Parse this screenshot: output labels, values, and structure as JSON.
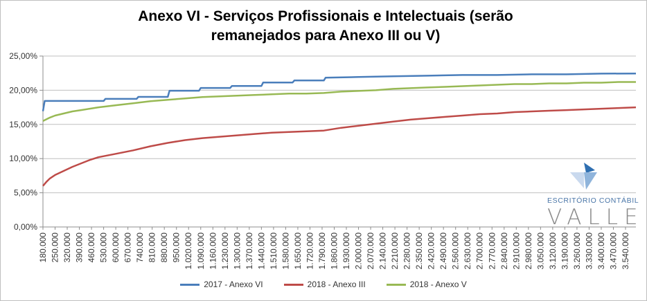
{
  "chart_data": {
    "type": "line",
    "title_lines": [
      "Anexo VI - Serviços Profissionais e Intelectuais (serão",
      "remanejados para Anexo III ou V)"
    ],
    "xlabel": "",
    "ylabel": "",
    "ylim": [
      0,
      25
    ],
    "y_ticks": [
      "0,00%",
      "5,00%",
      "10,00%",
      "15,00%",
      "20,00%",
      "25,00%"
    ],
    "x_ticks": [
      "180.000",
      "250.000",
      "320.000",
      "390.000",
      "460.000",
      "530.000",
      "600.000",
      "670.000",
      "740.000",
      "810.000",
      "880.000",
      "950.000",
      "1.020.000",
      "1.090.000",
      "1.160.000",
      "1.230.000",
      "1.300.000",
      "1.370.000",
      "1.440.000",
      "1.510.000",
      "1.580.000",
      "1.650.000",
      "1.720.000",
      "1.790.000",
      "1.860.000",
      "1.930.000",
      "2.000.000",
      "2.070.000",
      "2.140.000",
      "2.210.000",
      "2.280.000",
      "2.350.000",
      "2.420.000",
      "2.490.000",
      "2.560.000",
      "2.630.000",
      "2.700.000",
      "2.770.000",
      "2.840.000",
      "2.910.000",
      "2.980.000",
      "3.050.000",
      "3.120.000",
      "3.190.000",
      "3.260.000",
      "3.330.000",
      "3.400.000",
      "3.470.000",
      "3.540.000"
    ],
    "x_range": [
      180000,
      3600000
    ],
    "grid": true,
    "legend_position": "bottom",
    "series": [
      {
        "name": "2017 - Anexo VI",
        "color": "#4a7ebb",
        "points": [
          [
            180000,
            16.93
          ],
          [
            190000,
            18.43
          ],
          [
            530000,
            18.43
          ],
          [
            540000,
            18.73
          ],
          [
            720000,
            18.73
          ],
          [
            730000,
            19.03
          ],
          [
            900000,
            19.03
          ],
          [
            910000,
            19.93
          ],
          [
            1080000,
            19.93
          ],
          [
            1090000,
            20.33
          ],
          [
            1260000,
            20.33
          ],
          [
            1270000,
            20.63
          ],
          [
            1440000,
            20.63
          ],
          [
            1450000,
            21.13
          ],
          [
            1620000,
            21.13
          ],
          [
            1630000,
            21.43
          ],
          [
            1800000,
            21.43
          ],
          [
            1810000,
            21.83
          ],
          [
            2000000,
            21.93
          ],
          [
            2200000,
            22.03
          ],
          [
            2400000,
            22.13
          ],
          [
            2600000,
            22.23
          ],
          [
            2800000,
            22.23
          ],
          [
            3000000,
            22.33
          ],
          [
            3200000,
            22.33
          ],
          [
            3400000,
            22.43
          ],
          [
            3600000,
            22.45
          ]
        ]
      },
      {
        "name": "2018 - Anexo III",
        "color": "#be4b48",
        "points": [
          [
            180000,
            6.0
          ],
          [
            200000,
            6.6
          ],
          [
            220000,
            7.1
          ],
          [
            250000,
            7.6
          ],
          [
            300000,
            8.2
          ],
          [
            350000,
            8.8
          ],
          [
            400000,
            9.3
          ],
          [
            450000,
            9.8
          ],
          [
            500000,
            10.2
          ],
          [
            600000,
            10.7
          ],
          [
            700000,
            11.2
          ],
          [
            800000,
            11.8
          ],
          [
            900000,
            12.3
          ],
          [
            1000000,
            12.7
          ],
          [
            1100000,
            13.0
          ],
          [
            1200000,
            13.2
          ],
          [
            1300000,
            13.4
          ],
          [
            1400000,
            13.6
          ],
          [
            1500000,
            13.8
          ],
          [
            1600000,
            13.9
          ],
          [
            1700000,
            14.0
          ],
          [
            1800000,
            14.1
          ],
          [
            1900000,
            14.5
          ],
          [
            2000000,
            14.8
          ],
          [
            2100000,
            15.1
          ],
          [
            2200000,
            15.4
          ],
          [
            2300000,
            15.7
          ],
          [
            2400000,
            15.9
          ],
          [
            2500000,
            16.1
          ],
          [
            2600000,
            16.3
          ],
          [
            2700000,
            16.5
          ],
          [
            2800000,
            16.6
          ],
          [
            2900000,
            16.8
          ],
          [
            3000000,
            16.9
          ],
          [
            3100000,
            17.0
          ],
          [
            3200000,
            17.1
          ],
          [
            3300000,
            17.2
          ],
          [
            3400000,
            17.3
          ],
          [
            3500000,
            17.4
          ],
          [
            3600000,
            17.5
          ]
        ]
      },
      {
        "name": "2018 - Anexo V",
        "color": "#98b954",
        "points": [
          [
            180000,
            15.5
          ],
          [
            220000,
            16.0
          ],
          [
            250000,
            16.3
          ],
          [
            300000,
            16.6
          ],
          [
            350000,
            16.9
          ],
          [
            400000,
            17.1
          ],
          [
            450000,
            17.3
          ],
          [
            500000,
            17.5
          ],
          [
            600000,
            17.8
          ],
          [
            700000,
            18.1
          ],
          [
            800000,
            18.4
          ],
          [
            900000,
            18.6
          ],
          [
            1000000,
            18.8
          ],
          [
            1100000,
            19.0
          ],
          [
            1200000,
            19.1
          ],
          [
            1300000,
            19.2
          ],
          [
            1400000,
            19.3
          ],
          [
            1500000,
            19.4
          ],
          [
            1600000,
            19.5
          ],
          [
            1700000,
            19.5
          ],
          [
            1800000,
            19.6
          ],
          [
            1900000,
            19.8
          ],
          [
            2000000,
            19.9
          ],
          [
            2100000,
            20.0
          ],
          [
            2200000,
            20.2
          ],
          [
            2300000,
            20.3
          ],
          [
            2400000,
            20.4
          ],
          [
            2500000,
            20.5
          ],
          [
            2600000,
            20.6
          ],
          [
            2700000,
            20.7
          ],
          [
            2800000,
            20.8
          ],
          [
            2900000,
            20.9
          ],
          [
            3000000,
            20.9
          ],
          [
            3100000,
            21.0
          ],
          [
            3200000,
            21.0
          ],
          [
            3300000,
            21.1
          ],
          [
            3400000,
            21.1
          ],
          [
            3500000,
            21.2
          ],
          [
            3600000,
            21.2
          ]
        ]
      }
    ]
  },
  "logo": {
    "subtitle": "ESCRITÓRIO CONTÁBIL",
    "name": "VALLE"
  }
}
